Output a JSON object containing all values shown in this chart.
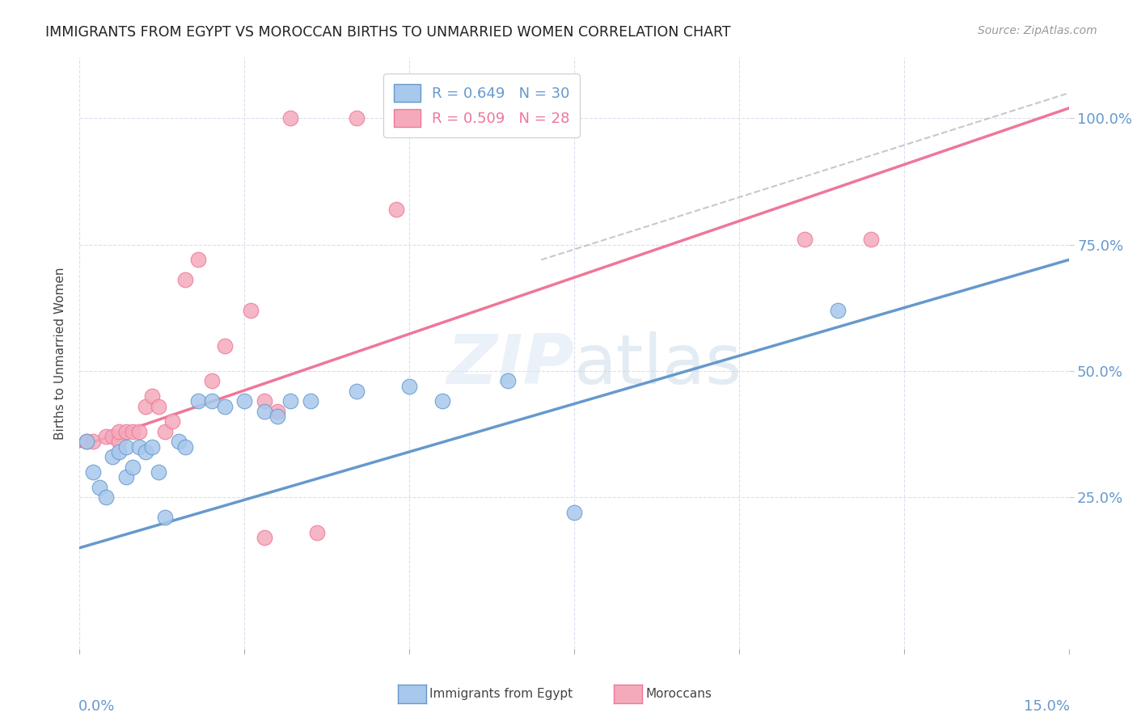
{
  "title": "IMMIGRANTS FROM EGYPT VS MOROCCAN BIRTHS TO UNMARRIED WOMEN CORRELATION CHART",
  "source": "Source: ZipAtlas.com",
  "legend_blue_text": "R = 0.649   N = 30",
  "legend_pink_text": "R = 0.509   N = 28",
  "legend_label_blue": "Immigrants from Egypt",
  "legend_label_pink": "Moroccans",
  "blue_color": "#A8C8EC",
  "pink_color": "#F4AABB",
  "blue_line_color": "#6699CC",
  "pink_line_color": "#EE7799",
  "gray_line_color": "#BBBBBB",
  "background_color": "#FFFFFF",
  "grid_color": "#DDDDEE",
  "xlim": [
    0.0,
    0.15
  ],
  "ylim": [
    -0.05,
    1.12
  ],
  "yticks": [
    0.25,
    0.5,
    0.75,
    1.0
  ],
  "ytick_labels": [
    "25.0%",
    "50.0%",
    "75.0%",
    "100.0%"
  ],
  "blue_scatter_x": [
    0.001,
    0.002,
    0.003,
    0.004,
    0.005,
    0.006,
    0.007,
    0.007,
    0.008,
    0.009,
    0.01,
    0.011,
    0.012,
    0.013,
    0.015,
    0.016,
    0.018,
    0.02,
    0.022,
    0.025,
    0.028,
    0.03,
    0.032,
    0.035,
    0.042,
    0.05,
    0.055,
    0.065,
    0.075,
    0.115
  ],
  "blue_scatter_y": [
    0.36,
    0.3,
    0.27,
    0.25,
    0.33,
    0.34,
    0.29,
    0.35,
    0.31,
    0.35,
    0.34,
    0.35,
    0.3,
    0.21,
    0.36,
    0.35,
    0.44,
    0.44,
    0.43,
    0.44,
    0.42,
    0.41,
    0.44,
    0.44,
    0.46,
    0.47,
    0.44,
    0.48,
    0.22,
    0.62
  ],
  "pink_scatter_x": [
    0.001,
    0.002,
    0.004,
    0.005,
    0.006,
    0.006,
    0.007,
    0.008,
    0.009,
    0.01,
    0.011,
    0.012,
    0.013,
    0.014,
    0.016,
    0.018,
    0.02,
    0.022,
    0.026,
    0.028,
    0.03,
    0.032,
    0.042,
    0.048,
    0.11,
    0.12,
    0.028,
    0.036
  ],
  "pink_scatter_y": [
    0.36,
    0.36,
    0.37,
    0.37,
    0.36,
    0.38,
    0.38,
    0.38,
    0.38,
    0.43,
    0.45,
    0.43,
    0.38,
    0.4,
    0.68,
    0.72,
    0.48,
    0.55,
    0.62,
    0.44,
    0.42,
    1.0,
    1.0,
    0.82,
    0.76,
    0.76,
    0.17,
    0.18
  ],
  "blue_line_x": [
    0.0,
    0.15
  ],
  "blue_line_y": [
    0.15,
    0.72
  ],
  "pink_line_x": [
    0.0,
    0.15
  ],
  "pink_line_y": [
    0.35,
    1.02
  ],
  "gray_line_x": [
    0.07,
    0.15
  ],
  "gray_line_y": [
    0.72,
    1.05
  ]
}
